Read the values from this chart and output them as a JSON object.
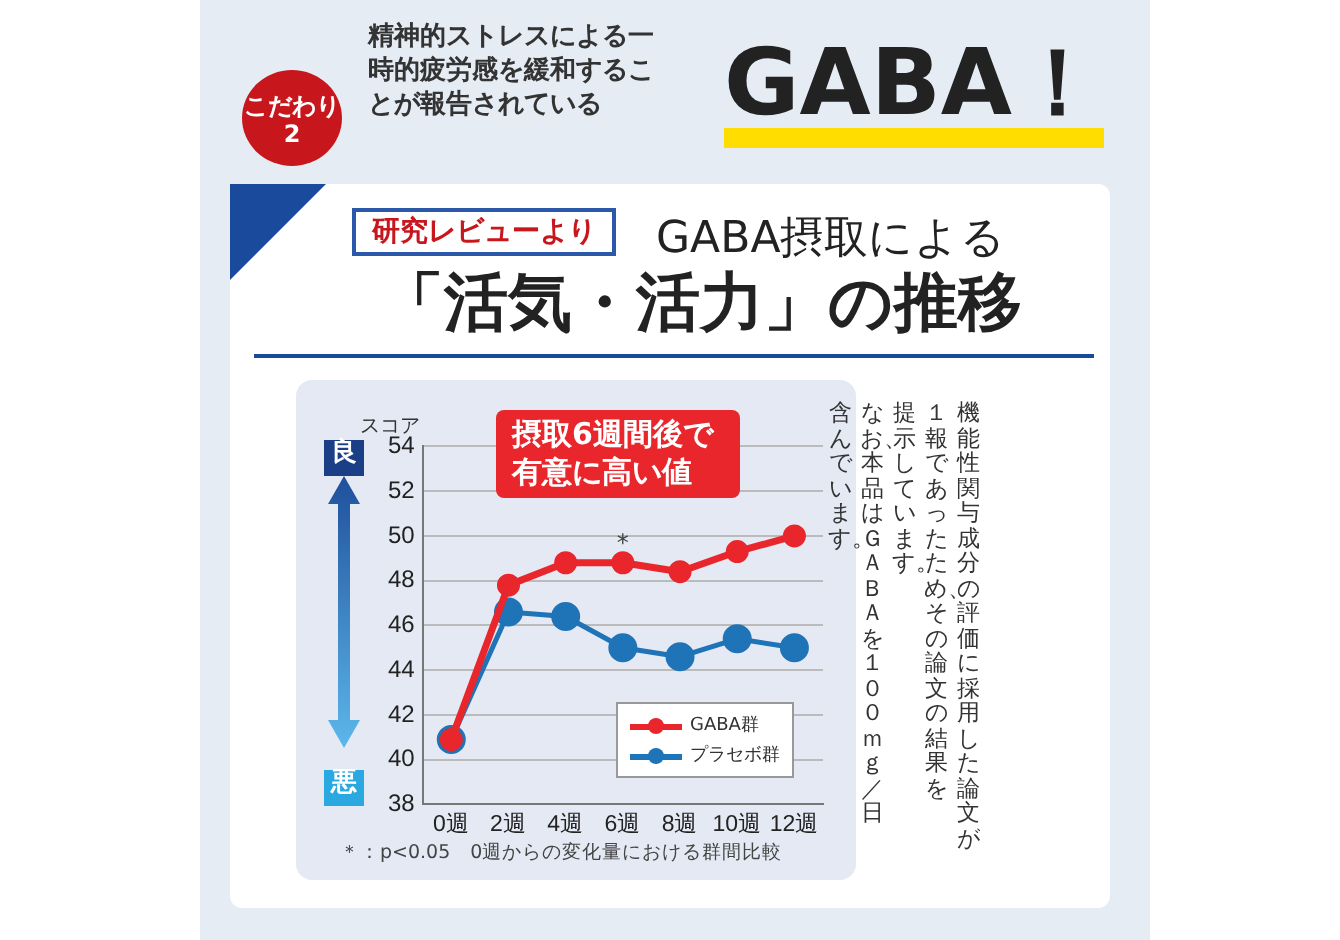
{
  "chart_data": {
    "type": "line",
    "title": "「活気・活力」の推移",
    "subtitle": "GABA摂取による",
    "ylabel": "スコア",
    "categories": [
      "0週",
      "2週",
      "4週",
      "6週",
      "8週",
      "10週",
      "12週"
    ],
    "series": [
      {
        "name": "GABA群",
        "color": "#e8262b",
        "values": [
          40.9,
          47.8,
          48.8,
          48.8,
          48.4,
          49.3,
          50.0
        ]
      },
      {
        "name": "プラセボ群",
        "color": "#1f73b7",
        "values": [
          40.9,
          46.6,
          46.4,
          45.0,
          44.6,
          45.4,
          45.0
        ]
      }
    ],
    "ylim": [
      38,
      54
    ],
    "yticks": [
      38,
      40,
      42,
      44,
      46,
      48,
      50,
      52,
      54
    ],
    "grid": "y",
    "legend": "bottom right",
    "marker": "circle",
    "line_style": "solid",
    "annotations": [
      "こだわり2",
      "精神的ストレスによる一時的疲労感を緩和することが報告されている",
      "GABA！",
      "研究レビューより",
      "良",
      "悪",
      "摂取6週間後で有意に高い値",
      {
        "text": "*",
        "x": "6週",
        "y": 49.6
      },
      "＊：p<0.05　0週からの変化量における群間比較",
      "機能性関与成分の評価に採用した論文が",
      "１報であったため、その論文の結果を",
      "提示しています。",
      "なお、本品はＧＡＢＡを１００ｍｇ／日",
      "含んでいます。"
    ]
  }
}
